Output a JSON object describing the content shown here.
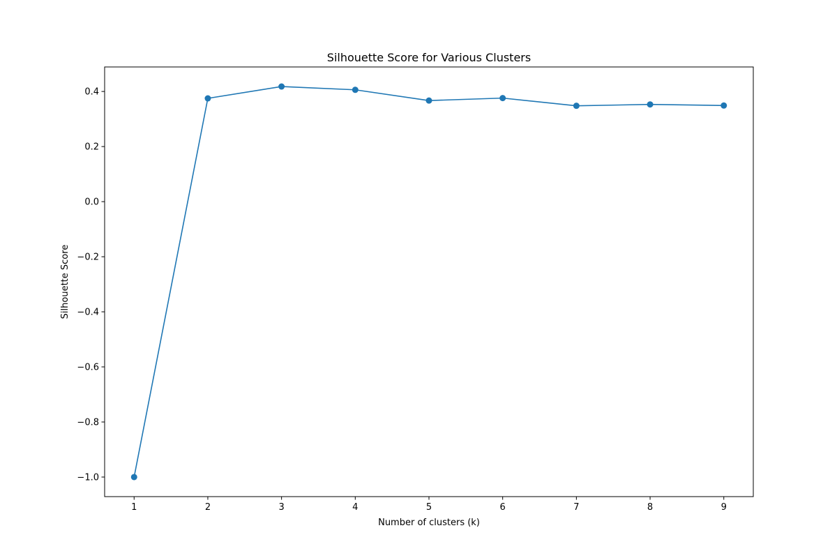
{
  "chart_data": {
    "type": "line",
    "title": "Silhouette Score for Various Clusters",
    "xlabel": "Number of clusters (k)",
    "ylabel": "Silhouette Score",
    "x": [
      1,
      2,
      3,
      4,
      5,
      6,
      7,
      8,
      9
    ],
    "series": [
      {
        "values": [
          -1.0,
          0.375,
          0.418,
          0.406,
          0.367,
          0.376,
          0.348,
          0.353,
          0.349
        ],
        "color": "#1f77b4",
        "marker": "circle"
      }
    ],
    "xticks": [
      1,
      2,
      3,
      4,
      5,
      6,
      7,
      8,
      9
    ],
    "xtick_labels": [
      "1",
      "2",
      "3",
      "4",
      "5",
      "6",
      "7",
      "8",
      "9"
    ],
    "yticks": [
      -1.0,
      -0.8,
      -0.6,
      -0.4,
      -0.2,
      0.0,
      0.2,
      0.4
    ],
    "ytick_labels": [
      "−1.0",
      "−0.8",
      "−0.6",
      "−0.4",
      "−0.2",
      "0.0",
      "0.2",
      "0.4"
    ],
    "xlim": [
      0.6,
      9.4
    ],
    "ylim": [
      -1.071,
      0.489
    ],
    "grid": false,
    "legend": "none"
  }
}
